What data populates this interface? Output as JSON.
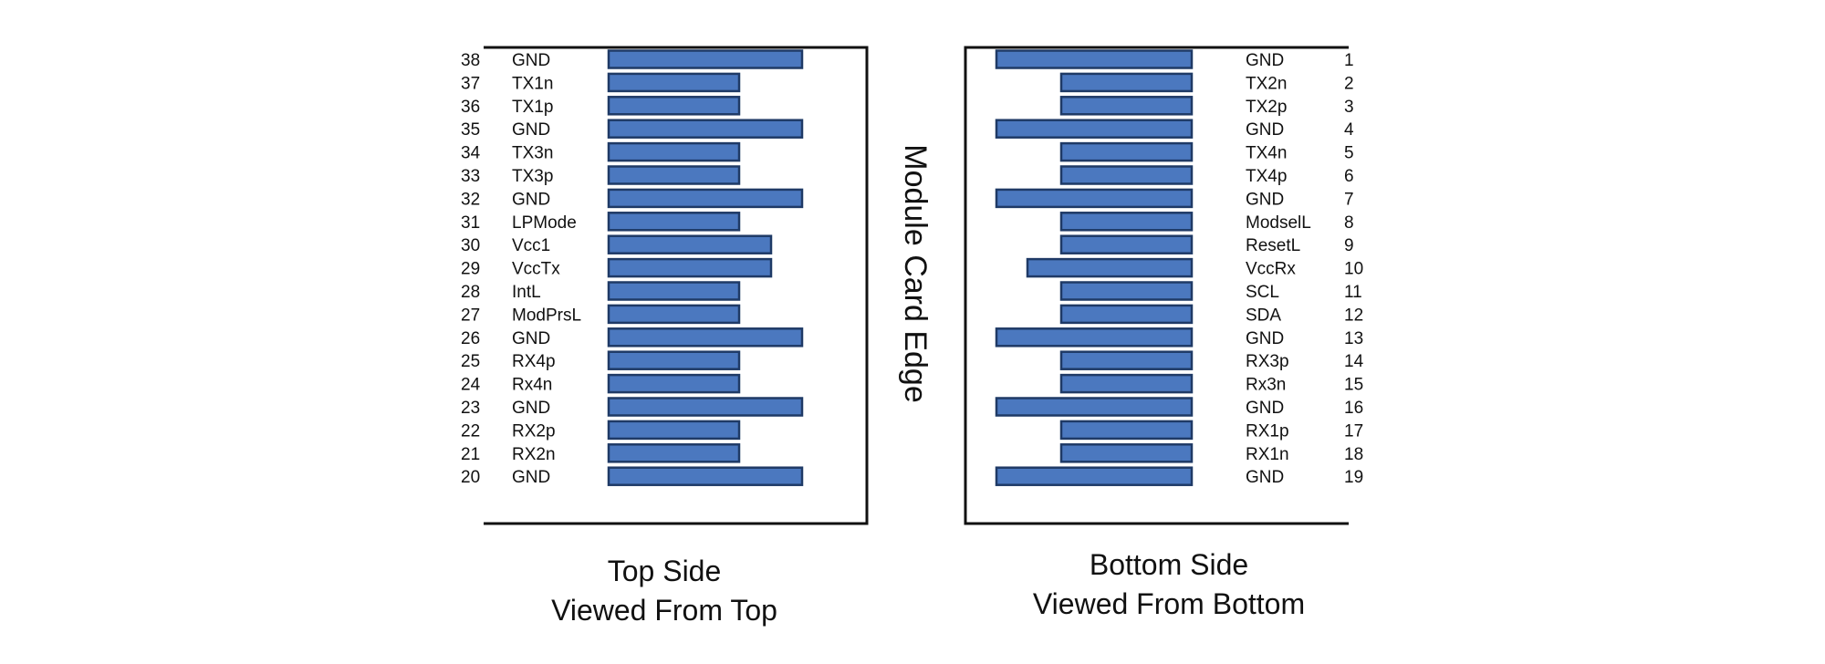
{
  "edge_label": "Module Card Edge",
  "top_side": {
    "caption_line1": "Top Side",
    "caption_line2": "Viewed From Top",
    "pins": [
      {
        "num": "38",
        "name": "GND",
        "length": "long"
      },
      {
        "num": "37",
        "name": "TX1n",
        "length": "short"
      },
      {
        "num": "36",
        "name": "TX1p",
        "length": "short"
      },
      {
        "num": "35",
        "name": "GND",
        "length": "long"
      },
      {
        "num": "34",
        "name": "TX3n",
        "length": "short"
      },
      {
        "num": "33",
        "name": "TX3p",
        "length": "short"
      },
      {
        "num": "32",
        "name": "GND",
        "length": "long"
      },
      {
        "num": "31",
        "name": "LPMode",
        "length": "short"
      },
      {
        "num": "30",
        "name": "Vcc1",
        "length": "medium"
      },
      {
        "num": "29",
        "name": "VccTx",
        "length": "medium"
      },
      {
        "num": "28",
        "name": "IntL",
        "length": "short"
      },
      {
        "num": "27",
        "name": "ModPrsL",
        "length": "short"
      },
      {
        "num": "26",
        "name": "GND",
        "length": "long"
      },
      {
        "num": "25",
        "name": "RX4p",
        "length": "short"
      },
      {
        "num": "24",
        "name": "Rx4n",
        "length": "short"
      },
      {
        "num": "23",
        "name": "GND",
        "length": "long"
      },
      {
        "num": "22",
        "name": "RX2p",
        "length": "short"
      },
      {
        "num": "21",
        "name": "RX2n",
        "length": "short"
      },
      {
        "num": "20",
        "name": "GND",
        "length": "long"
      }
    ]
  },
  "bottom_side": {
    "caption_line1": "Bottom Side",
    "caption_line2": "Viewed From Bottom",
    "pins": [
      {
        "num": "1",
        "name": "GND",
        "length": "long"
      },
      {
        "num": "2",
        "name": "TX2n",
        "length": "short"
      },
      {
        "num": "3",
        "name": "TX2p",
        "length": "short"
      },
      {
        "num": "4",
        "name": "GND",
        "length": "long"
      },
      {
        "num": "5",
        "name": "TX4n",
        "length": "short"
      },
      {
        "num": "6",
        "name": "TX4p",
        "length": "short"
      },
      {
        "num": "7",
        "name": "GND",
        "length": "long"
      },
      {
        "num": "8",
        "name": "ModselL",
        "length": "short"
      },
      {
        "num": "9",
        "name": "ResetL",
        "length": "short"
      },
      {
        "num": "10",
        "name": "VccRx",
        "length": "medium"
      },
      {
        "num": "11",
        "name": "SCL",
        "length": "short"
      },
      {
        "num": "12",
        "name": "SDA",
        "length": "short"
      },
      {
        "num": "13",
        "name": "GND",
        "length": "long"
      },
      {
        "num": "14",
        "name": "RX3p",
        "length": "short"
      },
      {
        "num": "15",
        "name": "Rx3n",
        "length": "short"
      },
      {
        "num": "16",
        "name": "GND",
        "length": "long"
      },
      {
        "num": "17",
        "name": "RX1p",
        "length": "short"
      },
      {
        "num": "18",
        "name": "RX1n",
        "length": "short"
      },
      {
        "num": "19",
        "name": "GND",
        "length": "long"
      }
    ]
  },
  "colors": {
    "pad_fill": "#4b78bf",
    "pad_stroke": "#1f3a66"
  }
}
